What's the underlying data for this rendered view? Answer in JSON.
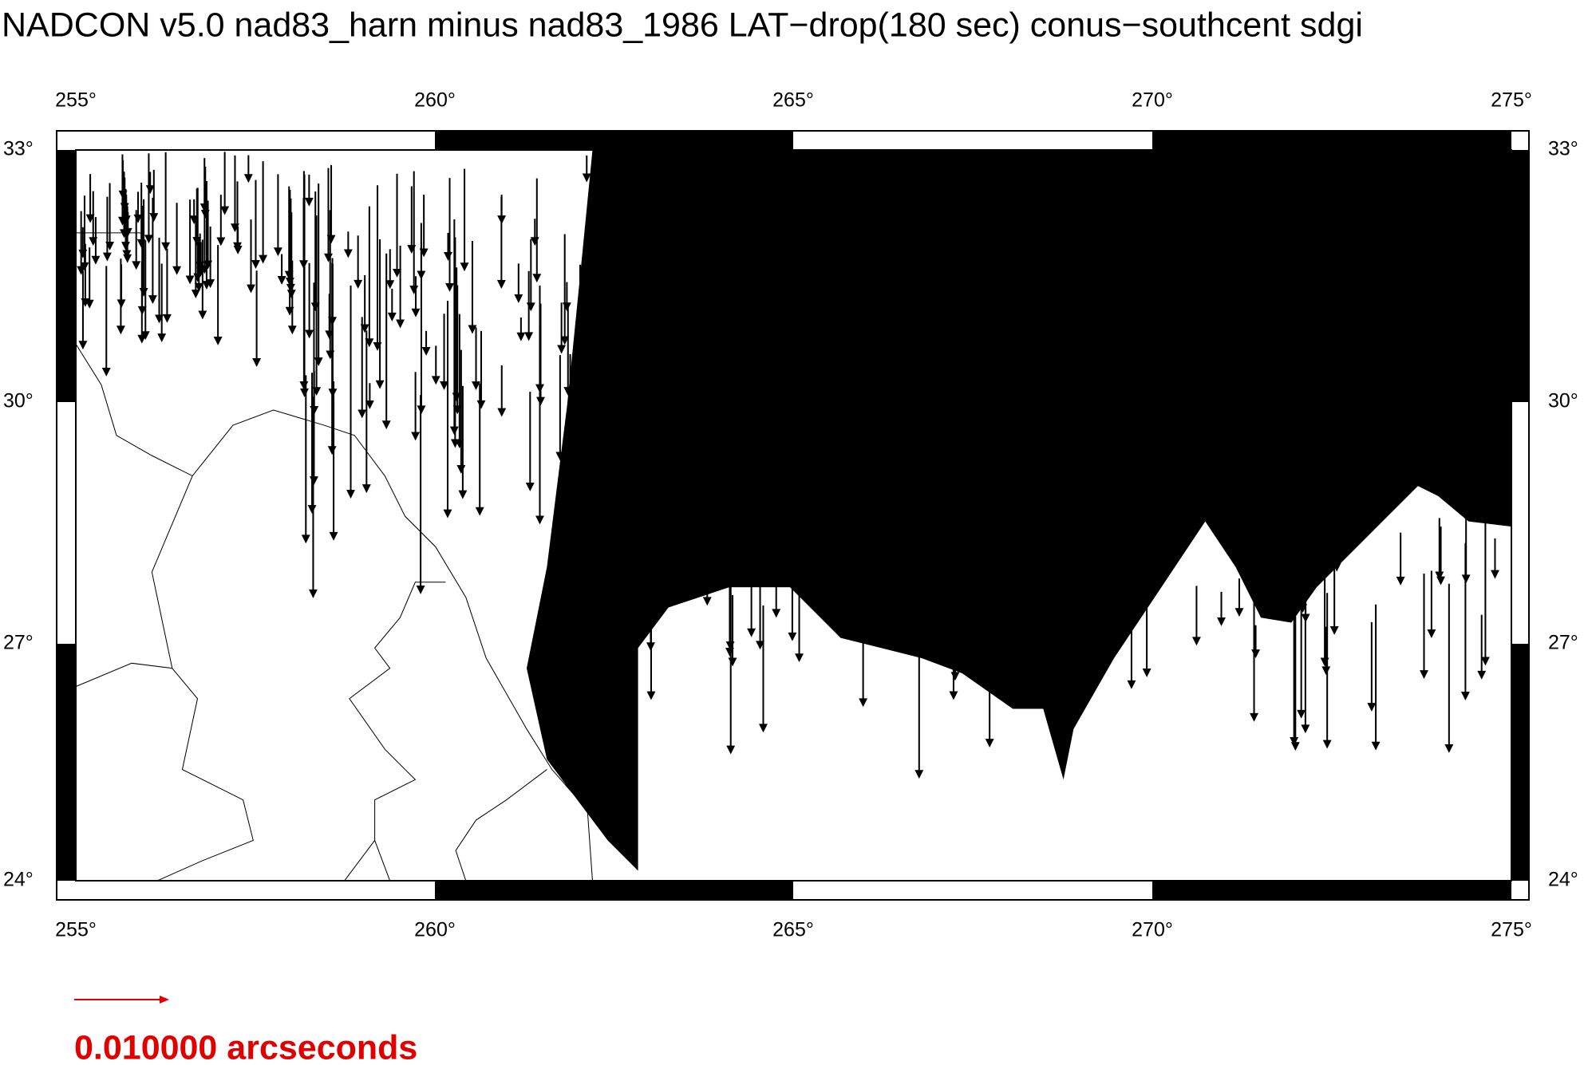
{
  "title": "NADCON v5.0 nad83_harn minus nad83_1986 LAT−drop(180 sec) conus−southcent sdgi",
  "map": {
    "x_tick_labels_top": [
      "255°",
      "260°",
      "265°",
      "270°",
      "275°"
    ],
    "x_tick_labels_bottom": [
      "255°",
      "260°",
      "265°",
      "270°",
      "275°"
    ],
    "y_tick_labels_left": [
      "33°",
      "30°",
      "27°",
      "24°"
    ],
    "y_tick_labels_right": [
      "33°",
      "30°",
      "27°",
      "24°"
    ]
  },
  "scale": {
    "label": "0.010000 arcseconds"
  }
}
